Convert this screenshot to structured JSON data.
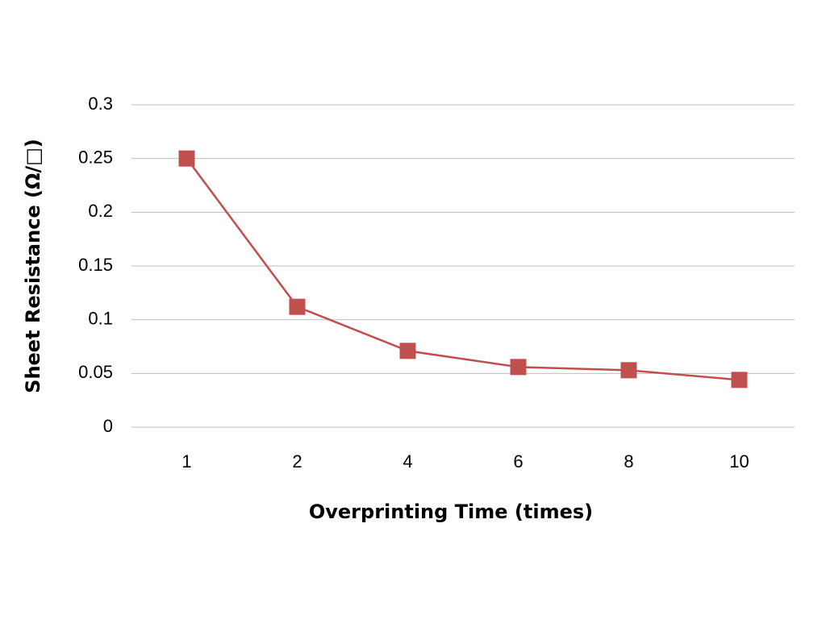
{
  "chart_data": {
    "type": "line",
    "x_label": "Overprinting Time (times)",
    "y_label": "Sheet Resistance (Ω/□)",
    "categories": [
      "1",
      "2",
      "4",
      "6",
      "8",
      "10"
    ],
    "values": [
      0.25,
      0.112,
      0.071,
      0.056,
      0.053,
      0.044
    ],
    "color": "#c0504d",
    "ylim": [
      0,
      0.3
    ],
    "yticks": [
      0,
      0.05,
      0.1,
      0.15,
      0.2,
      0.25,
      0.3
    ],
    "grid": true
  }
}
